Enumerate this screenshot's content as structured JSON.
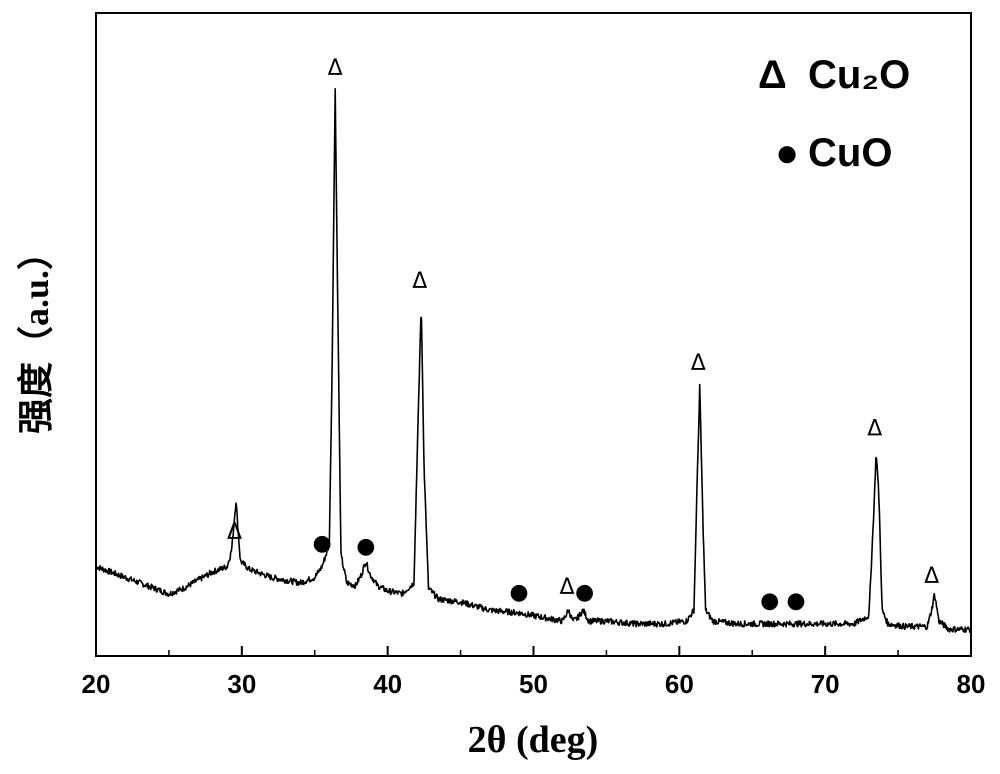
{
  "chart_data": {
    "type": "line",
    "title": "",
    "xlabel": "2θ (deg)",
    "ylabel": "强度（a.u.）",
    "xlim": [
      20,
      80
    ],
    "ylim": [
      0,
      100
    ],
    "x_ticks": [
      20,
      30,
      40,
      50,
      60,
      70,
      80
    ],
    "x_tick_labels": [
      "20",
      "30",
      "40",
      "50",
      "60",
      "70",
      "80"
    ],
    "grid": false,
    "legend_position": "top-right",
    "legend": [
      {
        "marker": "Δ",
        "label": "Cu₂O"
      },
      {
        "marker": "●",
        "label": "CuO"
      }
    ],
    "series": [
      {
        "x": [
          20,
          22,
          24,
          25,
          26,
          27,
          28,
          29,
          29.3,
          29.6,
          29.9,
          30.5,
          31,
          32,
          33,
          34,
          35,
          35.5,
          36,
          36.2,
          36.4,
          36.6,
          36.8,
          37.2,
          37.8,
          38.2,
          38.5,
          38.8,
          39.3,
          40,
          41,
          41.8,
          42.1,
          42.3,
          42.5,
          42.8,
          43.5,
          45,
          47,
          49,
          50,
          52,
          52.4,
          52.7,
          53,
          53.4,
          53.8,
          55,
          57,
          59,
          60.5,
          61,
          61.2,
          61.4,
          61.6,
          61.8,
          62.3,
          64,
          66,
          68,
          70,
          72,
          73,
          73.3,
          73.5,
          73.7,
          73.9,
          74.3,
          75.5,
          77,
          77.3,
          77.5,
          77.8,
          78.5,
          80
        ],
        "y": [
          12,
          10,
          8,
          7,
          8,
          9.5,
          11,
          12,
          15,
          24,
          13,
          11.5,
          11,
          10,
          9.5,
          9,
          10,
          12,
          16,
          50,
          100,
          55,
          14,
          9,
          8.5,
          10.5,
          13,
          10.5,
          8.5,
          7.5,
          7,
          9,
          40,
          60,
          30,
          8,
          6,
          5.5,
          4,
          3.5,
          3,
          2,
          4,
          2,
          2.5,
          4,
          2,
          2,
          1.5,
          1.5,
          2,
          4,
          25,
          45,
          22,
          4,
          2,
          1.5,
          1.5,
          1.5,
          1.5,
          1.5,
          3,
          20,
          33,
          24,
          4,
          1.5,
          1,
          1,
          4,
          7,
          2,
          0.5,
          0.5
        ]
      }
    ],
    "annotations": [
      {
        "marker": "Δ",
        "phase": "Cu2O",
        "x": 29.5,
        "y": 17
      },
      {
        "marker": "Δ",
        "phase": "Cu2O",
        "x": 36.4,
        "y": 102
      },
      {
        "marker": "Δ",
        "phase": "Cu2O",
        "x": 42.2,
        "y": 63
      },
      {
        "marker": "Δ",
        "phase": "Cu2O",
        "x": 52.3,
        "y": 7
      },
      {
        "marker": "Δ",
        "phase": "Cu2O",
        "x": 61.3,
        "y": 48
      },
      {
        "marker": "Δ",
        "phase": "Cu2O",
        "x": 73.4,
        "y": 36
      },
      {
        "marker": "Δ",
        "phase": "Cu2O",
        "x": 77.3,
        "y": 9
      },
      {
        "marker": "●",
        "phase": "CuO",
        "x": 35.5,
        "y": 15
      },
      {
        "marker": "●",
        "phase": "CuO",
        "x": 38.5,
        "y": 14.5
      },
      {
        "marker": "●",
        "phase": "CuO",
        "x": 49,
        "y": 6
      },
      {
        "marker": "●",
        "phase": "CuO",
        "x": 53.5,
        "y": 6
      },
      {
        "marker": "●",
        "phase": "CuO",
        "x": 66.2,
        "y": 4.5
      },
      {
        "marker": "●",
        "phase": "CuO",
        "x": 68,
        "y": 4.5
      }
    ]
  }
}
